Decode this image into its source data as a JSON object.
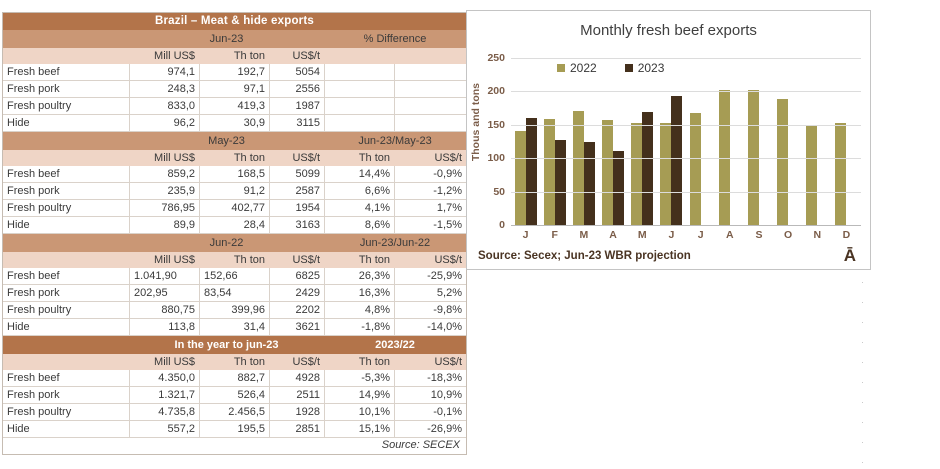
{
  "colors": {
    "copper_header": "#B3744A",
    "tan_header": "#CA9775",
    "peach_header": "#EFD5C6",
    "bar_2022": "#A69C54",
    "bar_2023": "#44301C"
  },
  "table": {
    "title": "Brazil – Meat & hide exports",
    "source": "Source: SECEX",
    "sections": [
      {
        "variant": "tan",
        "period": "Jun-23",
        "diff": "% Difference",
        "headers": [
          "Mill US$",
          "Th ton",
          "US$/t",
          "",
          ""
        ],
        "rows": [
          {
            "label": "Fresh beef",
            "values": [
              "974,1",
              "192,7",
              "5054",
              "",
              ""
            ]
          },
          {
            "label": "Fresh pork",
            "values": [
              "248,3",
              "97,1",
              "2556",
              "",
              ""
            ]
          },
          {
            "label": "Fresh poultry",
            "values": [
              "833,0",
              "419,3",
              "1987",
              "",
              ""
            ]
          },
          {
            "label": "Hide",
            "values": [
              "96,2",
              "30,9",
              "3115",
              "",
              ""
            ]
          }
        ]
      },
      {
        "variant": "tan",
        "period": "May-23",
        "diff": "Jun-23/May-23",
        "headers": [
          "Mill US$",
          "Th ton",
          "US$/t",
          "Th ton",
          "US$/t"
        ],
        "rows": [
          {
            "label": "Fresh beef",
            "values": [
              "859,2",
              "168,5",
              "5099",
              "14,4%",
              "-0,9%"
            ]
          },
          {
            "label": "Fresh pork",
            "values": [
              "235,9",
              "91,2",
              "2587",
              "6,6%",
              "-1,2%"
            ]
          },
          {
            "label": "Fresh poultry",
            "values": [
              "786,95",
              "402,77",
              "1954",
              "4,1%",
              "1,7%"
            ]
          },
          {
            "label": "Hide",
            "values": [
              "89,9",
              "28,4",
              "3163",
              "8,6%",
              "-1,5%"
            ]
          }
        ]
      },
      {
        "variant": "tan",
        "period": "Jun-22",
        "diff": "Jun-23/Jun-22",
        "headers": [
          "Mill US$",
          "Th ton",
          "US$/t",
          "Th ton",
          "US$/t"
        ],
        "left_cells": [
          [
            0,
            0
          ],
          [
            0,
            1
          ],
          [
            1,
            0
          ],
          [
            1,
            1
          ]
        ],
        "rows": [
          {
            "label": "Fresh beef",
            "values": [
              "1.041,90",
              "152,66",
              "6825",
              "26,3%",
              "-25,9%"
            ]
          },
          {
            "label": "Fresh pork",
            "values": [
              "202,95",
              "83,54",
              "2429",
              "16,3%",
              "5,2%"
            ]
          },
          {
            "label": "Fresh poultry",
            "values": [
              "880,75",
              "399,96",
              "2202",
              "4,8%",
              "-9,8%"
            ]
          },
          {
            "label": "Hide",
            "values": [
              "113,8",
              "31,4",
              "3621",
              "-1,8%",
              "-14,0%"
            ]
          }
        ]
      },
      {
        "variant": "copper",
        "period": "In the year to jun-23",
        "diff": "2023/22",
        "headers": [
          "Mill US$",
          "Th ton",
          "US$/t",
          "Th ton",
          "US$/t"
        ],
        "rows": [
          {
            "label": "Fresh beef",
            "values": [
              "4.350,0",
              "882,7",
              "4928",
              "-5,3%",
              "-18,3%"
            ]
          },
          {
            "label": "Fresh pork",
            "values": [
              "1.321,7",
              "526,4",
              "2511",
              "14,9%",
              "10,9%"
            ]
          },
          {
            "label": "Fresh poultry",
            "values": [
              "4.735,8",
              "2.456,5",
              "1928",
              "10,1%",
              "-0,1%"
            ]
          },
          {
            "label": "Hide",
            "values": [
              "557,2",
              "195,5",
              "2851",
              "15,1%",
              "-26,9%"
            ]
          }
        ]
      }
    ]
  },
  "chart_data": {
    "type": "bar",
    "title": "Monthly fresh beef exports",
    "ylabel": "Thous and tons",
    "xlabel": "",
    "ylim": [
      0,
      250
    ],
    "ytick_step": 50,
    "grid": true,
    "legend_position": "top-left-inside",
    "categories": [
      "J",
      "F",
      "M",
      "A",
      "M",
      "J",
      "J",
      "A",
      "S",
      "O",
      "N",
      "D"
    ],
    "series": [
      {
        "name": "2022",
        "color": "#A69C54",
        "values": [
          140,
          159,
          170,
          157,
          152,
          152.7,
          167,
          202,
          202,
          188,
          148,
          152
        ]
      },
      {
        "name": "2023",
        "color": "#44301C",
        "values": [
          160,
          127,
          125,
          111,
          168.5,
          192.7,
          null,
          null,
          null,
          null,
          null,
          null
        ]
      }
    ],
    "source": "Source: Secex; Jun-23 WBR projection",
    "corner_glyph": "Ā"
  }
}
